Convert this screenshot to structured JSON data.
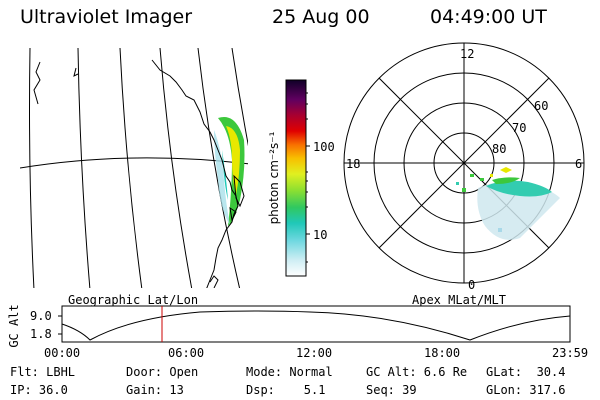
{
  "header": {
    "title": "Ultraviolet Imager",
    "date": "25 Aug 00",
    "time": "04:49:00 UT"
  },
  "geo_panel": {
    "label": "Geographic Lat/Lon"
  },
  "polar_panel": {
    "label": "Apex MLat/MLT",
    "mlt_labels": [
      "12",
      "18",
      "6",
      "0"
    ],
    "lat_labels": [
      "60",
      "70",
      "80"
    ]
  },
  "colorbar": {
    "unit_label": "photon cm⁻²s⁻¹",
    "ticks": [
      "100",
      "10"
    ]
  },
  "timeline": {
    "ylabel": "GC Alt",
    "ytick_top": "9.0",
    "ytick_bottom": "1.8",
    "xticks": [
      "00:00",
      "06:00",
      "12:00",
      "18:00",
      "23:59"
    ],
    "marker_time": "04:49"
  },
  "status": {
    "flt": "Flt: LBHL",
    "door": "Door: Open",
    "mode": "Mode: Normal",
    "gc_alt": "GC Alt: 6.6 Re",
    "glat": "GLat:  30.4",
    "ip": "IP: 36.0",
    "gain": "Gain: 13",
    "dsp": "Dsp:    5.1",
    "seq": "Seq: 39",
    "glon": "GLon: 317.6"
  },
  "colors": {
    "marker": "#cc0000",
    "aurora_green": "#3cc83c",
    "aurora_yellow": "#e8e800",
    "aurora_cyan": "#33ccb0"
  }
}
